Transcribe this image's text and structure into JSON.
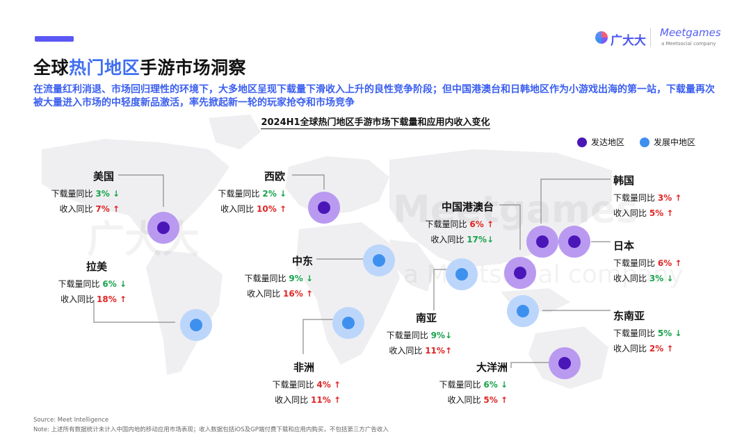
{
  "header": {
    "title_part1": "全球",
    "title_highlight": "热门地区",
    "title_part2": "手游市场洞察",
    "subtitle": "在流量红利消退、市场回归理性的环境下，大多地区呈现下载量下滑收入上升的良性竞争阶段；但中国港澳台和日韩地区作为小游戏出海的第一站，下载量再次被大量进入市场的中轻度新品激活，率先掀起新一轮的玩家抢夺和市场竞争",
    "chart_title": "2024H1全球热门地区手游市场下载量和应用内收入变化"
  },
  "logo": {
    "cn": "广大大",
    "en": "Meetgames",
    "en_sub": "a Meetsocial company"
  },
  "watermark": {
    "cn": "广大大",
    "en": "Meetgames",
    "en_sub": "a Meetsocial company"
  },
  "legend": {
    "developed": "发达地区",
    "emerging": "发展中地区",
    "developed_color": "#4b16b8",
    "emerging_color": "#3e90ee"
  },
  "labels": {
    "download": "下载量同比",
    "revenue": "收入同比"
  },
  "regions": {
    "us": {
      "name": "美国",
      "download": "3%",
      "download_dir": "down",
      "revenue": "7%",
      "revenue_dir": "up",
      "type": "developed"
    },
    "weu": {
      "name": "西欧",
      "download": "2%",
      "download_dir": "down",
      "revenue": "10%",
      "revenue_dir": "up",
      "type": "developed"
    },
    "latam": {
      "name": "拉美",
      "download": "6%",
      "download_dir": "down",
      "revenue": "18%",
      "revenue_dir": "up",
      "type": "emerging"
    },
    "me": {
      "name": "中东",
      "download": "9%",
      "download_dir": "down",
      "revenue": "16%",
      "revenue_dir": "up",
      "type": "emerging"
    },
    "hmt": {
      "name": "中国港澳台",
      "download": "6%",
      "download_dir": "up",
      "revenue": "17%",
      "revenue_dir": "down",
      "type": "developed"
    },
    "kr": {
      "name": "韩国",
      "download": "3%",
      "download_dir": "up",
      "revenue": "5%",
      "revenue_dir": "up",
      "type": "developed"
    },
    "jp": {
      "name": "日本",
      "download": "6%",
      "download_dir": "up",
      "revenue": "3%",
      "revenue_dir": "down",
      "type": "developed"
    },
    "sa": {
      "name": "南亚",
      "download": "9%",
      "download_dir": "down",
      "revenue": "11%",
      "revenue_dir": "up",
      "type": "emerging"
    },
    "sea": {
      "name": "东南亚",
      "download": "5%",
      "download_dir": "down",
      "revenue": "2%",
      "revenue_dir": "up",
      "type": "emerging"
    },
    "africa": {
      "name": "非洲",
      "download": "4%",
      "download_dir": "up",
      "revenue": "11%",
      "revenue_dir": "up",
      "type": "emerging"
    },
    "oceania": {
      "name": "大洋洲",
      "download": "6%",
      "download_dir": "down",
      "revenue": "5%",
      "revenue_dir": "up",
      "type": "developed"
    }
  },
  "arrows": {
    "up": "↑",
    "down": "↓"
  },
  "footer": {
    "source": "Source: Meet Intelligence",
    "note": "Note: 上述所有数据统计未计入中国内地的移动应用市场表现；收入数据包括iOS及GP端付费下载和应用内购买，不包括第三方广告收入"
  }
}
